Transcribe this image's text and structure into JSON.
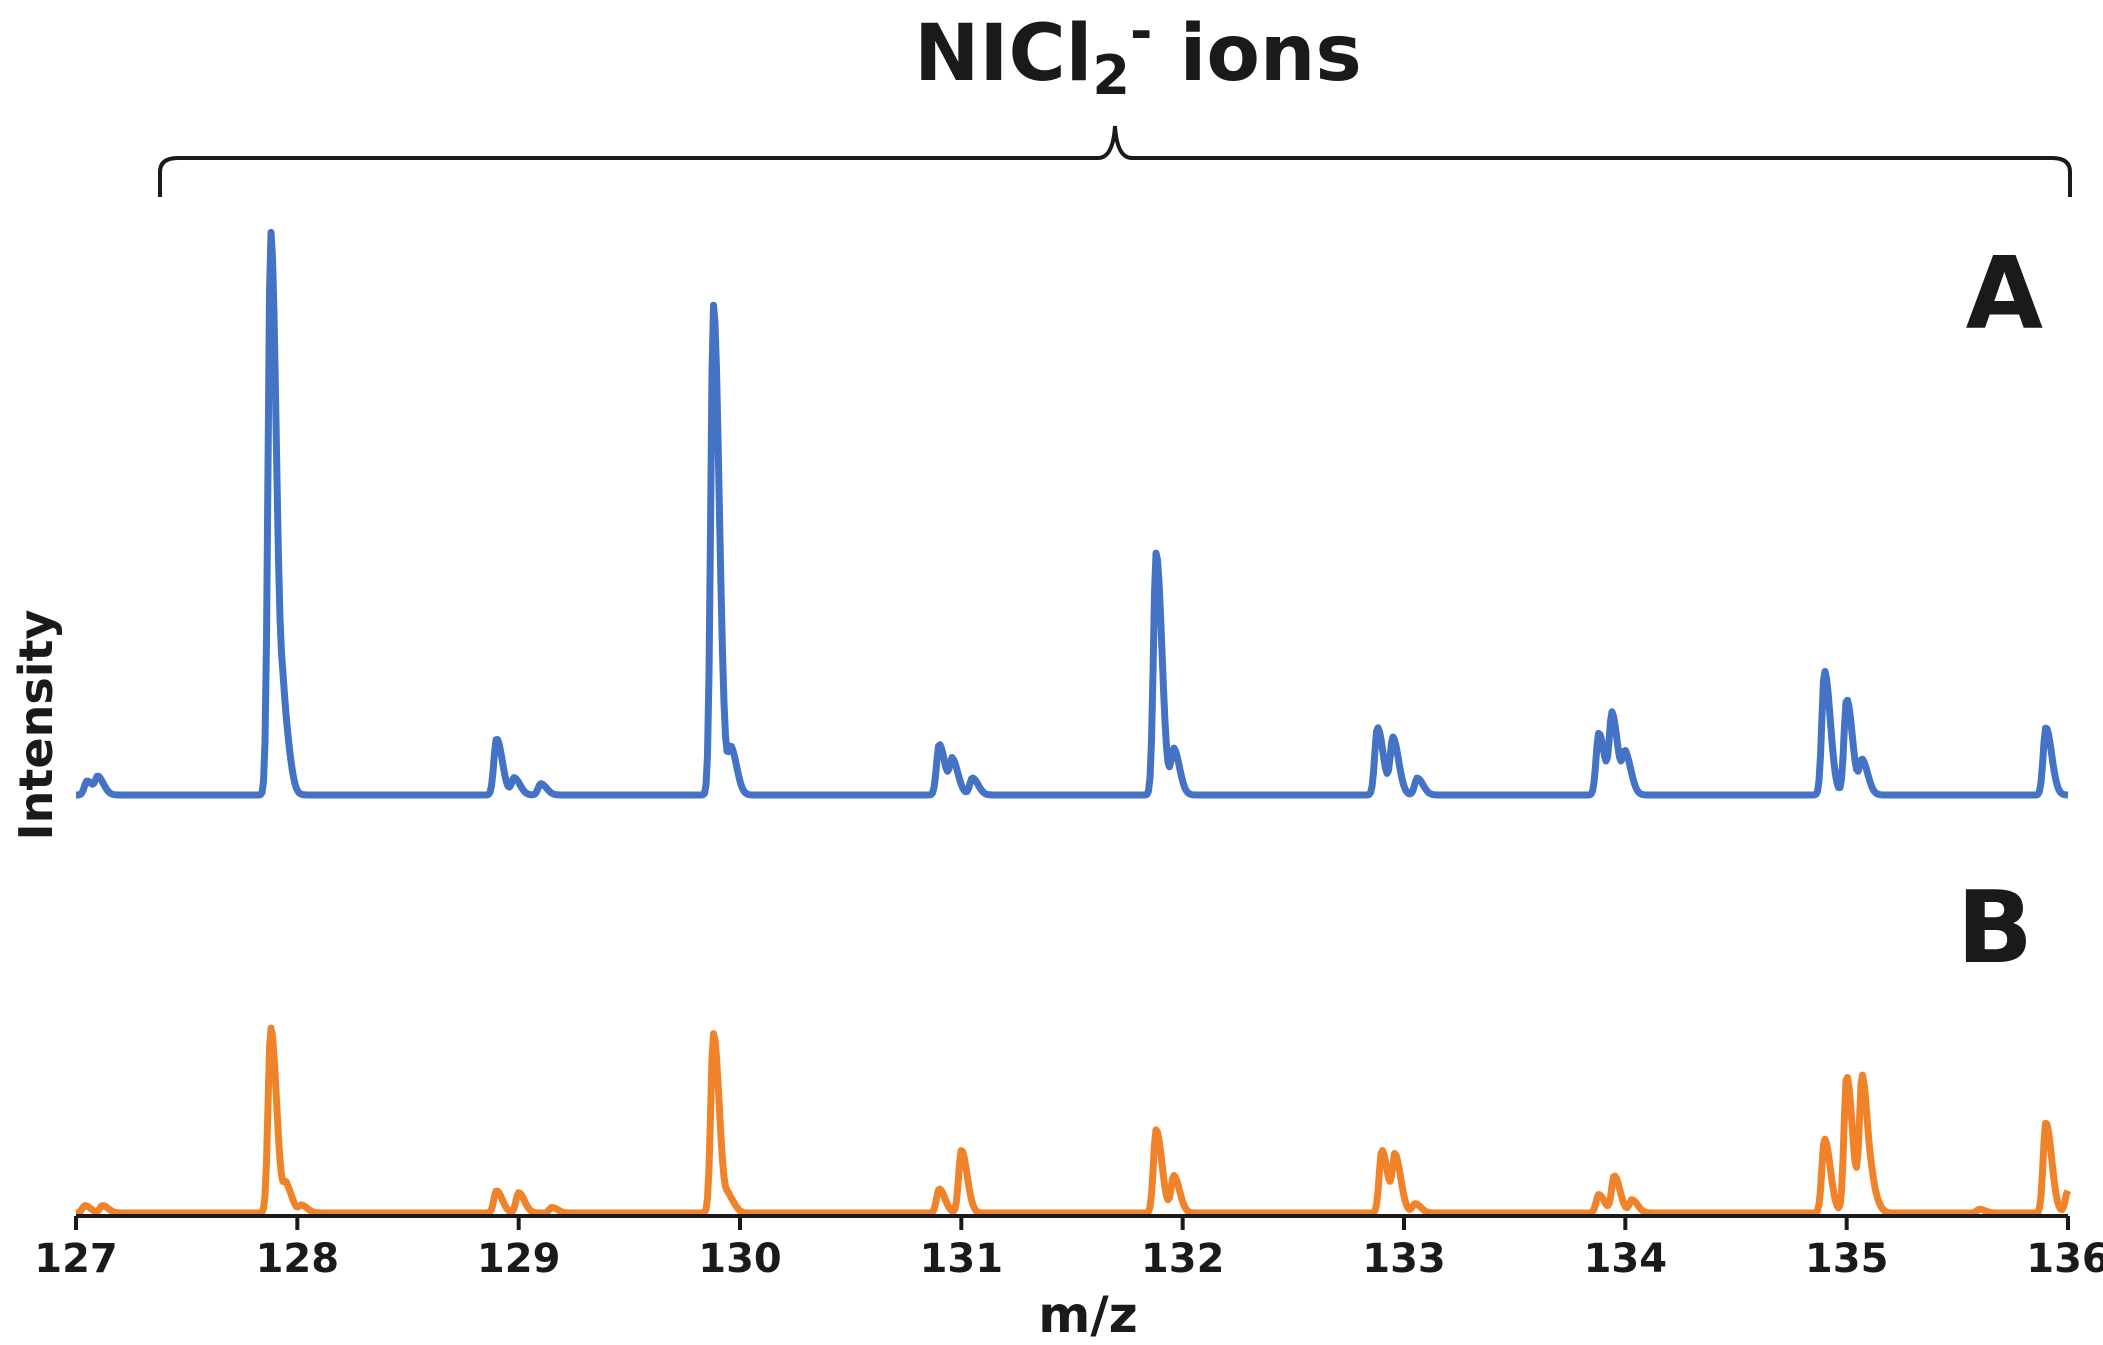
{
  "chart_data": {
    "type": "line",
    "title": {
      "base": "NICl",
      "subscript": "2",
      "superscript": "-",
      "suffix": " ions"
    },
    "xlabel": "m/z",
    "ylabel": "Intensity",
    "xlim": [
      127,
      136
    ],
    "xticks": [
      127,
      128,
      129,
      130,
      131,
      132,
      133,
      134,
      135,
      136
    ],
    "xtick_labels": [
      "127",
      "128",
      "129",
      "130",
      "131",
      "132",
      "133",
      "134",
      "135",
      "136"
    ],
    "grid": false,
    "series": [
      {
        "label": "A",
        "color": "#4472c4",
        "peaks": [
          {
            "mz": 127.05,
            "h": 0.025
          },
          {
            "mz": 127.1,
            "h": 0.03
          },
          {
            "mz": 127.88,
            "h": 1.0
          },
          {
            "mz": 127.94,
            "h": 0.12
          },
          {
            "mz": 128.9,
            "h": 0.1
          },
          {
            "mz": 128.98,
            "h": 0.03
          },
          {
            "mz": 129.1,
            "h": 0.02
          },
          {
            "mz": 129.88,
            "h": 0.87
          },
          {
            "mz": 129.96,
            "h": 0.08
          },
          {
            "mz": 130.9,
            "h": 0.09
          },
          {
            "mz": 130.96,
            "h": 0.06
          },
          {
            "mz": 131.05,
            "h": 0.03
          },
          {
            "mz": 131.88,
            "h": 0.43
          },
          {
            "mz": 131.96,
            "h": 0.08
          },
          {
            "mz": 132.88,
            "h": 0.12
          },
          {
            "mz": 132.95,
            "h": 0.1
          },
          {
            "mz": 133.06,
            "h": 0.03
          },
          {
            "mz": 133.88,
            "h": 0.11
          },
          {
            "mz": 133.94,
            "h": 0.14
          },
          {
            "mz": 134.0,
            "h": 0.07
          },
          {
            "mz": 134.9,
            "h": 0.22
          },
          {
            "mz": 135.0,
            "h": 0.17
          },
          {
            "mz": 135.07,
            "h": 0.06
          },
          {
            "mz": 135.9,
            "h": 0.12
          }
        ]
      },
      {
        "label": "B",
        "color": "#f0832a",
        "peaks": [
          {
            "mz": 127.04,
            "h": 0.04
          },
          {
            "mz": 127.12,
            "h": 0.04
          },
          {
            "mz": 127.88,
            "h": 1.0
          },
          {
            "mz": 127.95,
            "h": 0.14
          },
          {
            "mz": 128.02,
            "h": 0.04
          },
          {
            "mz": 128.9,
            "h": 0.12
          },
          {
            "mz": 129.0,
            "h": 0.11
          },
          {
            "mz": 129.15,
            "h": 0.03
          },
          {
            "mz": 129.88,
            "h": 0.97
          },
          {
            "mz": 129.95,
            "h": 0.08
          },
          {
            "mz": 130.9,
            "h": 0.13
          },
          {
            "mz": 131.0,
            "h": 0.34
          },
          {
            "mz": 131.88,
            "h": 0.45
          },
          {
            "mz": 131.96,
            "h": 0.2
          },
          {
            "mz": 132.9,
            "h": 0.34
          },
          {
            "mz": 132.96,
            "h": 0.3
          },
          {
            "mz": 133.05,
            "h": 0.05
          },
          {
            "mz": 133.88,
            "h": 0.1
          },
          {
            "mz": 133.95,
            "h": 0.2
          },
          {
            "mz": 134.03,
            "h": 0.07
          },
          {
            "mz": 134.9,
            "h": 0.4
          },
          {
            "mz": 135.0,
            "h": 0.74
          },
          {
            "mz": 135.07,
            "h": 0.73
          },
          {
            "mz": 135.12,
            "h": 0.08
          },
          {
            "mz": 135.6,
            "h": 0.02
          },
          {
            "mz": 135.9,
            "h": 0.49
          },
          {
            "mz": 136.0,
            "h": 0.12
          }
        ]
      }
    ]
  }
}
